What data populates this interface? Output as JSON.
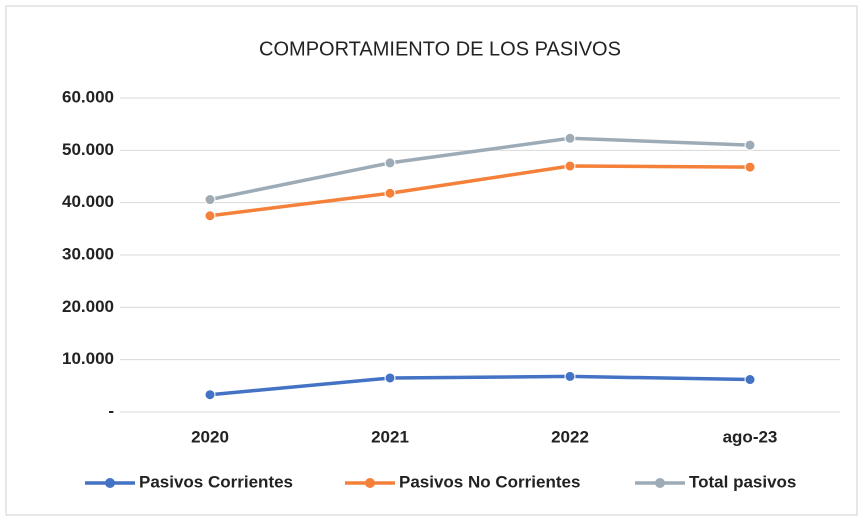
{
  "chart_data": {
    "type": "line",
    "title": "COMPORTAMIENTO DE LOS PASIVOS",
    "categories": [
      "2020",
      "2021",
      "2022",
      "ago-23"
    ],
    "series": [
      {
        "name": "Pasivos Corrientes",
        "color": "#4472c4",
        "values": [
          3300,
          6500,
          6800,
          6200
        ]
      },
      {
        "name": "Pasivos No Corrientes",
        "color": "#f4803a",
        "values": [
          37500,
          41800,
          47000,
          46800
        ]
      },
      {
        "name": "Total pasivos",
        "color": "#9dabb6",
        "values": [
          40600,
          47600,
          52300,
          51000
        ]
      }
    ],
    "ylim": [
      0,
      60000
    ],
    "yticks": [
      {
        "value": 0,
        "label": "-"
      },
      {
        "value": 10000,
        "label": "10.000"
      },
      {
        "value": 20000,
        "label": "20.000"
      },
      {
        "value": 30000,
        "label": "30.000"
      },
      {
        "value": 40000,
        "label": "40.000"
      },
      {
        "value": 50000,
        "label": "50.000"
      },
      {
        "value": 60000,
        "label": "60.000"
      }
    ],
    "grid": true,
    "legend": "bottom"
  }
}
